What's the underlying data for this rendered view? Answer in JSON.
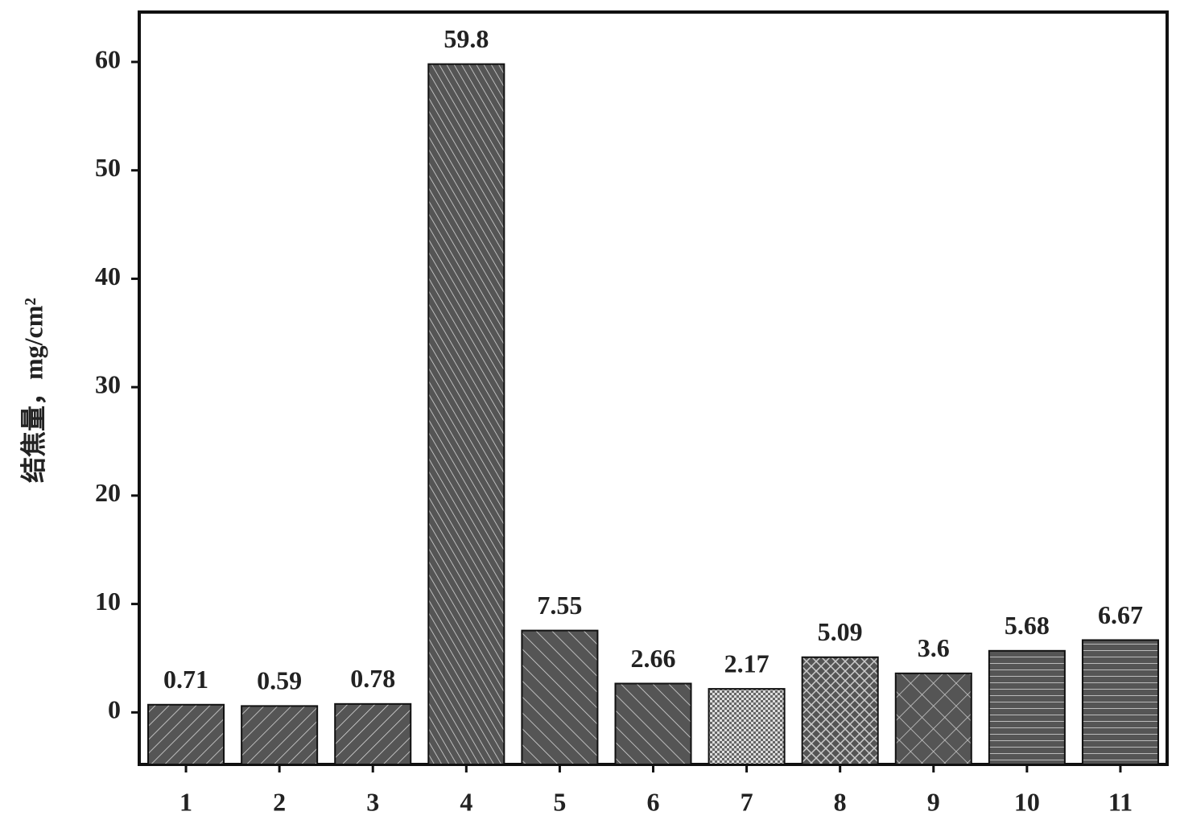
{
  "chart_data": {
    "type": "bar",
    "y_label": "结焦量，mg/cm²",
    "categories": [
      "1",
      "2",
      "3",
      "4",
      "5",
      "6",
      "7",
      "8",
      "9",
      "10",
      "11"
    ],
    "values": [
      0.71,
      0.59,
      0.78,
      59.8,
      7.55,
      2.66,
      2.17,
      5.09,
      3.6,
      5.68,
      6.67
    ],
    "color": "#555555",
    "ylim": [
      -4.8,
      64.6
    ],
    "yticks": [
      0,
      10,
      20,
      30,
      40,
      50,
      60
    ],
    "grid": false
  }
}
